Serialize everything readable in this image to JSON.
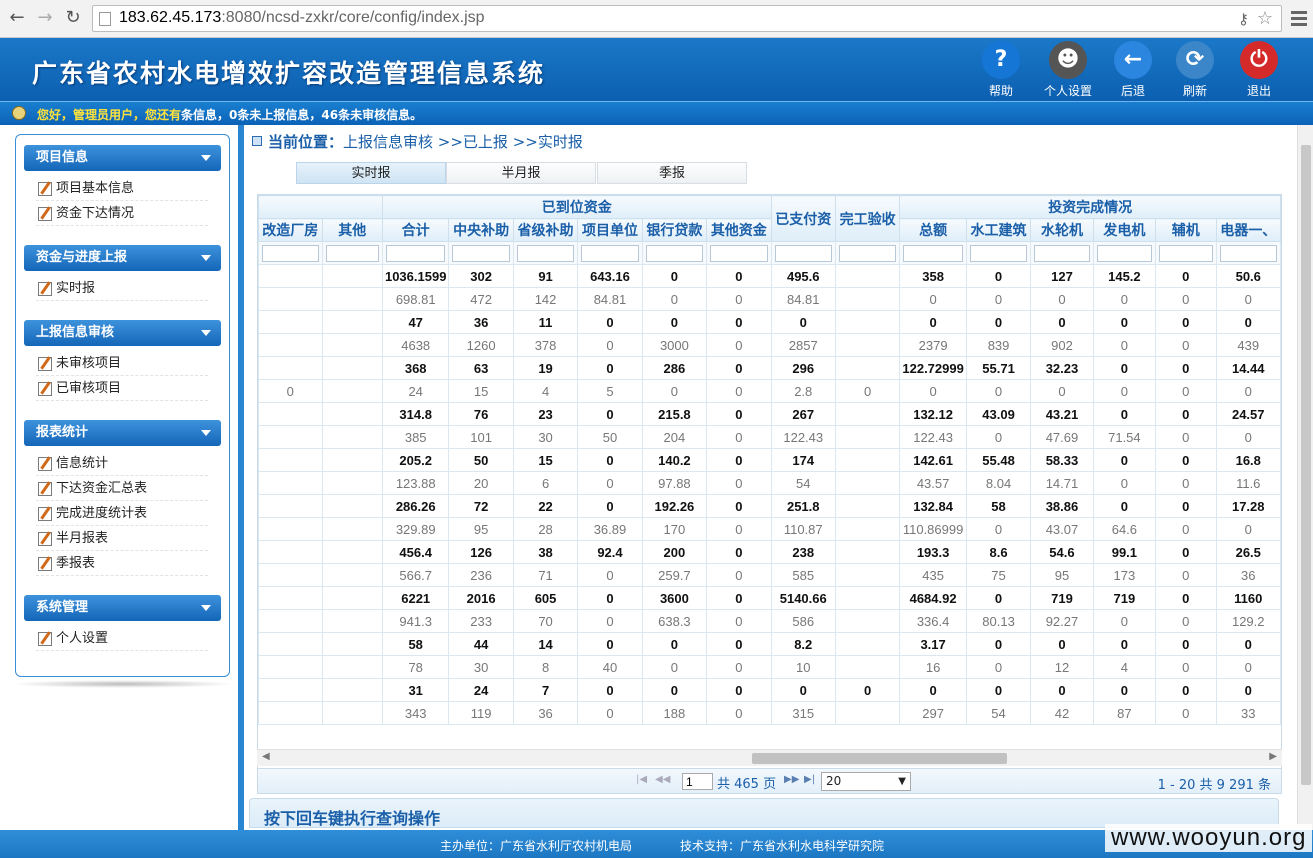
{
  "browser": {
    "url_host": "183.62.45.173",
    "url_rest": ":8080/ncsd-zxkr/core/config/index.jsp"
  },
  "app": {
    "title": "广东省农村水电增效扩容改造管理信息系统",
    "toolbar": [
      {
        "label": "帮助",
        "icon": "help-icon",
        "glyph": "?",
        "color": "#1676d6"
      },
      {
        "label": "个人设置",
        "icon": "user-settings-icon",
        "glyph": "☻",
        "color": "#555555"
      },
      {
        "label": "后退",
        "icon": "back-icon",
        "glyph": "←",
        "color": "#2b86e0"
      },
      {
        "label": "刷新",
        "icon": "refresh-icon",
        "glyph": "⟳",
        "color": "#3a86c9"
      },
      {
        "label": "退出",
        "icon": "power-icon",
        "glyph": "⏻",
        "color": "#d42a2a"
      }
    ],
    "info_msg_hl": "您好，管理员用户，您还有",
    "info_msg_rest": "条信息，0条未上报信息，46条未审核信息。"
  },
  "sidebar": {
    "groups": [
      {
        "title": "项目信息",
        "items": [
          "项目基本信息",
          "资金下达情况"
        ]
      },
      {
        "title": "资金与进度上报",
        "items": [
          "实时报"
        ]
      },
      {
        "title": "上报信息审核",
        "items": [
          "未审核项目",
          "已审核项目"
        ]
      },
      {
        "title": "报表统计",
        "items": [
          "信息统计",
          "下达资金汇总表",
          "完成进度统计表",
          "半月报表",
          "季报表"
        ]
      },
      {
        "title": "系统管理",
        "items": [
          "个人设置"
        ]
      }
    ]
  },
  "main": {
    "location_label": "当前位置：",
    "location_path": "上报信息审核 >>已上报 >>实时报",
    "tabs": [
      "实时报",
      "半月报",
      "季报"
    ],
    "group_headers": {
      "funds": "已到位资金",
      "investment": "投资完成情况"
    },
    "columns": [
      "改造厂房",
      "其他",
      "合计",
      "中央补助",
      "省级补助",
      "项目单位",
      "银行贷款",
      "其他资金",
      "已支付资",
      "完工验收",
      "总额",
      "水工建筑",
      "水轮机",
      "发电机",
      "辅机",
      "电器一、"
    ],
    "rows": [
      [
        "",
        "",
        "1036.1599",
        "302",
        "91",
        "643.16",
        "0",
        "0",
        "495.6",
        "",
        "358",
        "0",
        "127",
        "145.2",
        "0",
        "50.6"
      ],
      [
        "",
        "",
        "698.81",
        "472",
        "142",
        "84.81",
        "0",
        "0",
        "84.81",
        "",
        "0",
        "0",
        "0",
        "0",
        "0",
        "0"
      ],
      [
        "",
        "",
        "47",
        "36",
        "11",
        "0",
        "0",
        "0",
        "0",
        "",
        "0",
        "0",
        "0",
        "0",
        "0",
        "0"
      ],
      [
        "",
        "",
        "4638",
        "1260",
        "378",
        "0",
        "3000",
        "0",
        "2857",
        "",
        "2379",
        "839",
        "902",
        "0",
        "0",
        "439"
      ],
      [
        "",
        "",
        "368",
        "63",
        "19",
        "0",
        "286",
        "0",
        "296",
        "",
        "122.72999",
        "55.71",
        "32.23",
        "0",
        "0",
        "14.44"
      ],
      [
        "0",
        "",
        "24",
        "15",
        "4",
        "5",
        "0",
        "0",
        "2.8",
        "0",
        "0",
        "0",
        "0",
        "0",
        "0",
        "0"
      ],
      [
        "",
        "",
        "314.8",
        "76",
        "23",
        "0",
        "215.8",
        "0",
        "267",
        "",
        "132.12",
        "43.09",
        "43.21",
        "0",
        "0",
        "24.57"
      ],
      [
        "",
        "",
        "385",
        "101",
        "30",
        "50",
        "204",
        "0",
        "122.43",
        "",
        "122.43",
        "0",
        "47.69",
        "71.54",
        "0",
        "0"
      ],
      [
        "",
        "",
        "205.2",
        "50",
        "15",
        "0",
        "140.2",
        "0",
        "174",
        "",
        "142.61",
        "55.48",
        "58.33",
        "0",
        "0",
        "16.8"
      ],
      [
        "",
        "",
        "123.88",
        "20",
        "6",
        "0",
        "97.88",
        "0",
        "54",
        "",
        "43.57",
        "8.04",
        "14.71",
        "0",
        "0",
        "11.6"
      ],
      [
        "",
        "",
        "286.26",
        "72",
        "22",
        "0",
        "192.26",
        "0",
        "251.8",
        "",
        "132.84",
        "58",
        "38.86",
        "0",
        "0",
        "17.28"
      ],
      [
        "",
        "",
        "329.89",
        "95",
        "28",
        "36.89",
        "170",
        "0",
        "110.87",
        "",
        "110.86999",
        "0",
        "43.07",
        "64.6",
        "0",
        "0"
      ],
      [
        "",
        "",
        "456.4",
        "126",
        "38",
        "92.4",
        "200",
        "0",
        "238",
        "",
        "193.3",
        "8.6",
        "54.6",
        "99.1",
        "0",
        "26.5"
      ],
      [
        "",
        "",
        "566.7",
        "236",
        "71",
        "0",
        "259.7",
        "0",
        "585",
        "",
        "435",
        "75",
        "95",
        "173",
        "0",
        "36"
      ],
      [
        "",
        "",
        "6221",
        "2016",
        "605",
        "0",
        "3600",
        "0",
        "5140.66",
        "",
        "4684.92",
        "0",
        "719",
        "719",
        "0",
        "1160"
      ],
      [
        "",
        "",
        "941.3",
        "233",
        "70",
        "0",
        "638.3",
        "0",
        "586",
        "",
        "336.4",
        "80.13",
        "92.27",
        "0",
        "0",
        "129.2"
      ],
      [
        "",
        "",
        "58",
        "44",
        "14",
        "0",
        "0",
        "0",
        "8.2",
        "",
        "3.17",
        "0",
        "0",
        "0",
        "0",
        "0"
      ],
      [
        "",
        "",
        "78",
        "30",
        "8",
        "40",
        "0",
        "0",
        "10",
        "",
        "16",
        "0",
        "12",
        "4",
        "0",
        "0"
      ],
      [
        "",
        "",
        "31",
        "24",
        "7",
        "0",
        "0",
        "0",
        "0",
        "0",
        "0",
        "0",
        "0",
        "0",
        "0",
        "0"
      ],
      [
        "",
        "",
        "343",
        "119",
        "36",
        "0",
        "188",
        "0",
        "315",
        "",
        "297",
        "54",
        "42",
        "87",
        "0",
        "33"
      ]
    ],
    "pager": {
      "page": "1",
      "total": "共 465 页",
      "page_size": "20",
      "range": "1 - 20   共 9 291 条"
    },
    "hint": "按下回车键执行查询操作"
  },
  "footer": {
    "host": "主办单位：广东省水利厅农村机电局",
    "support": "技术支持：广东省水利水电科学研究院",
    "watermark": "www.wooyun.org"
  }
}
